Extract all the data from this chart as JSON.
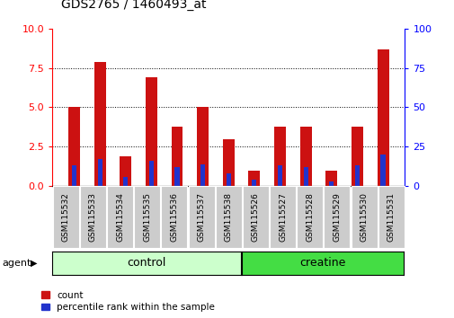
{
  "title": "GDS2765 / 1460493_at",
  "categories": [
    "GSM115532",
    "GSM115533",
    "GSM115534",
    "GSM115535",
    "GSM115536",
    "GSM115537",
    "GSM115538",
    "GSM115526",
    "GSM115527",
    "GSM115528",
    "GSM115529",
    "GSM115530",
    "GSM115531"
  ],
  "count_values": [
    5.0,
    7.9,
    1.9,
    6.9,
    3.8,
    5.0,
    3.0,
    1.0,
    3.8,
    3.8,
    1.0,
    3.8,
    8.7
  ],
  "percentile_values": [
    1.3,
    1.7,
    0.6,
    1.6,
    1.2,
    1.4,
    0.8,
    0.4,
    1.3,
    1.2,
    0.3,
    1.3,
    2.0
  ],
  "groups": [
    {
      "label": "control",
      "start": 0,
      "end": 6,
      "color": "#ccffcc"
    },
    {
      "label": "creatine",
      "start": 7,
      "end": 12,
      "color": "#44dd44"
    }
  ],
  "group_label": "agent",
  "ylim_left": [
    0,
    10
  ],
  "ylim_right": [
    0,
    100
  ],
  "yticks_left": [
    0,
    2.5,
    5.0,
    7.5,
    10
  ],
  "yticks_right": [
    0,
    25,
    50,
    75,
    100
  ],
  "bar_color_red": "#cc1111",
  "bar_color_blue": "#2233cc",
  "grid_dotted_at": [
    2.5,
    5.0,
    7.5
  ],
  "bar_width": 0.45,
  "blue_bar_width": 0.18,
  "tick_bg_color": "#cccccc",
  "legend_count": "count",
  "legend_percentile": "percentile rank within the sample",
  "title_fontsize": 10,
  "axis_fontsize": 8,
  "label_fontsize": 6.5,
  "legend_fontsize": 7.5
}
